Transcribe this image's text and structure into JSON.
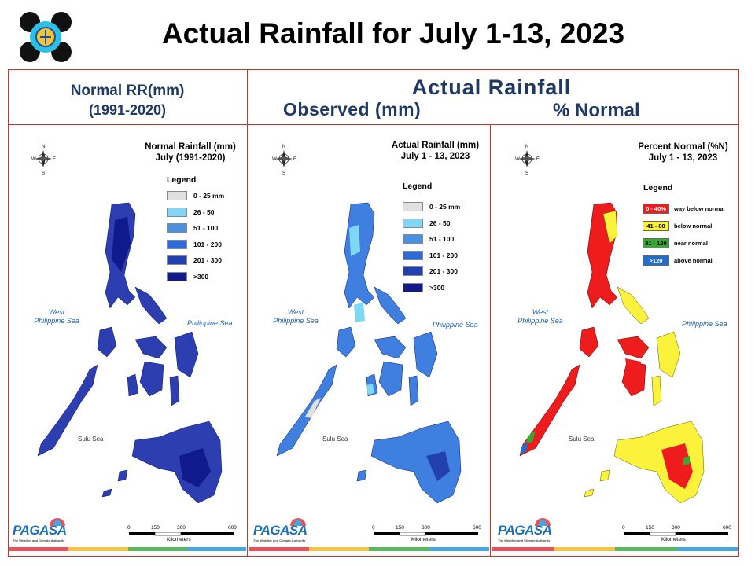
{
  "title": "Actual Rainfall for July 1-13, 2023",
  "headers": {
    "normal_line1": "Normal RR(mm)",
    "normal_line2": "(1991-2020)",
    "actual": "Actual Rainfall",
    "observed": "Observed (mm)",
    "percent": "% Normal"
  },
  "panels": [
    {
      "title_line1": "Normal Rainfall (mm)",
      "title_line2": "July (1991-2020)",
      "legend_title": "Legend",
      "legend": [
        {
          "label": "0 - 25 mm",
          "color": "#e0e0e0"
        },
        {
          "label": "26 - 50",
          "color": "#7fd7f5"
        },
        {
          "label": "51 - 100",
          "color": "#4a90e2"
        },
        {
          "label": "101 - 200",
          "color": "#2f6bd6"
        },
        {
          "label": "201 - 300",
          "color": "#2340b0"
        },
        {
          "label": ">300",
          "color": "#101a8c"
        }
      ]
    },
    {
      "title_line1": "Actual Rainfall (mm)",
      "title_line2": "July 1 - 13, 2023",
      "legend_title": "Legend",
      "legend": [
        {
          "label": "0 - 25 mm",
          "color": "#e0e0e0"
        },
        {
          "label": "26 - 50",
          "color": "#7fd7f5"
        },
        {
          "label": "51 - 100",
          "color": "#4a90e2"
        },
        {
          "label": "101 - 200",
          "color": "#2f6bd6"
        },
        {
          "label": "201 - 300",
          "color": "#2340b0"
        },
        {
          "label": ">300",
          "color": "#101a8c"
        }
      ]
    },
    {
      "title_line1": "Percent Normal (%N)",
      "title_line2": "July 1 - 13, 2023",
      "legend_title": "Legend",
      "legend": [
        {
          "label": "0 - 40%",
          "desc": "way below normal",
          "color": "#ee1c1c",
          "text_color": "#ffffff"
        },
        {
          "label": "41 - 80",
          "desc": "below normal",
          "color": "#fbf23b",
          "text_color": "#000000"
        },
        {
          "label": "81 - 120",
          "desc": "near normal",
          "color": "#39a935",
          "text_color": "#000000"
        },
        {
          "label": ">120",
          "desc": "above normal",
          "color": "#1f6fd1",
          "text_color": "#ffffff"
        }
      ]
    }
  ],
  "map_labels": {
    "west_sea": "West\nPhilippine Sea",
    "west_sea_l1": "West",
    "west_sea_l2": "Philippine Sea",
    "phil_sea": "Philippine Sea",
    "sulu_sea": "Sulu Sea",
    "scale_ticks": [
      "0",
      "150",
      "300",
      "600"
    ],
    "scale_unit": "Kilometers",
    "compass_n": "N",
    "compass_s": "S",
    "compass_e": "E",
    "compass_w": "W"
  },
  "branding": {
    "pagasa": "PAGASA",
    "dost": "DOST",
    "tagline": "The Weather and Climate Authority"
  },
  "colors": {
    "frame": "#c0392b",
    "header_text": "#1f3864",
    "bar": [
      "#e8525c",
      "#f3c443",
      "#5cb860",
      "#46a6dd"
    ]
  }
}
